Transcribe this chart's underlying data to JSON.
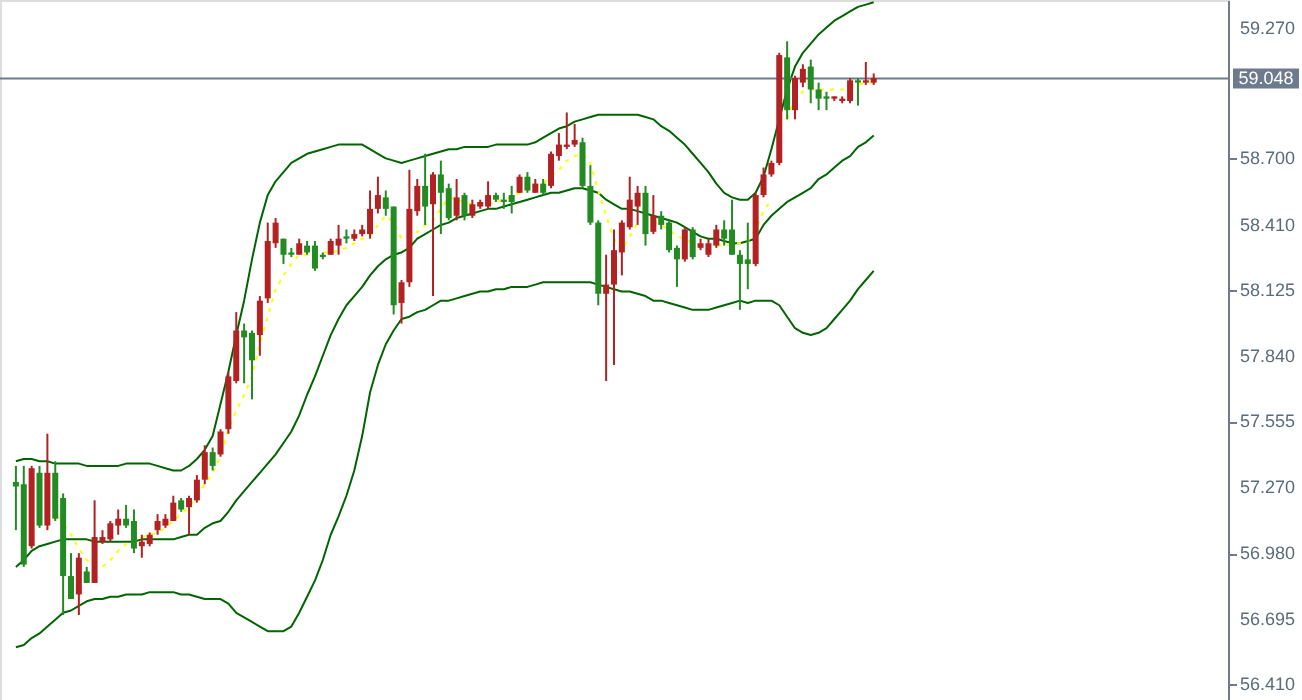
{
  "chart_data": {
    "type": "candlestick",
    "categories": [
      null,
      null,
      null,
      null,
      null,
      null,
      null,
      null,
      null,
      null,
      null,
      null,
      null,
      null,
      null,
      null,
      null,
      null,
      null,
      null,
      null,
      null,
      null,
      null,
      null,
      null,
      null,
      null,
      null,
      null,
      null,
      null,
      null,
      null,
      null,
      null,
      null,
      null,
      null,
      null,
      null,
      null,
      null,
      null,
      null,
      null,
      null,
      null,
      null,
      null,
      null,
      null,
      null,
      null,
      null,
      null,
      null,
      null,
      null,
      null,
      null,
      null,
      null,
      null,
      null,
      null,
      null,
      null,
      null,
      null,
      null,
      null,
      null,
      null,
      null,
      null,
      null,
      null,
      null,
      null,
      null,
      null,
      null,
      null,
      null,
      null,
      null,
      null,
      null,
      null,
      null,
      null,
      null,
      null,
      null,
      null,
      null,
      null,
      null,
      null,
      null,
      null,
      null,
      null,
      null,
      null,
      null,
      null,
      null,
      null
    ],
    "ohlc": [
      [
        57.29,
        57.36,
        57.08,
        57.27
      ],
      [
        57.28,
        57.36,
        56.92,
        56.93
      ],
      [
        57.01,
        57.36,
        57.0,
        57.35
      ],
      [
        57.33,
        57.36,
        57.09,
        57.1
      ],
      [
        57.1,
        57.5,
        57.08,
        57.33
      ],
      [
        57.33,
        57.38,
        57.12,
        57.13
      ],
      [
        57.22,
        57.24,
        56.71,
        56.88
      ],
      [
        56.88,
        56.98,
        56.78,
        56.78
      ],
      [
        56.8,
        56.98,
        56.71,
        56.96
      ],
      [
        56.9,
        56.92,
        56.85,
        56.85
      ],
      [
        56.85,
        57.21,
        56.85,
        57.05
      ],
      [
        57.03,
        57.08,
        57.02,
        57.05
      ],
      [
        57.04,
        57.12,
        57.03,
        57.11
      ],
      [
        57.1,
        57.17,
        57.06,
        57.13
      ],
      [
        57.13,
        57.19,
        57.09,
        57.1
      ],
      [
        57.12,
        57.17,
        56.98,
        57.0
      ],
      [
        57.01,
        57.06,
        56.96,
        57.03
      ],
      [
        57.02,
        57.07,
        57.01,
        57.06
      ],
      [
        57.08,
        57.15,
        57.06,
        57.12
      ],
      [
        57.1,
        57.15,
        57.09,
        57.13
      ],
      [
        57.12,
        57.23,
        57.12,
        57.2
      ],
      [
        57.21,
        57.22,
        57.16,
        57.17
      ],
      [
        57.18,
        57.23,
        57.06,
        57.22
      ],
      [
        57.21,
        57.32,
        57.2,
        57.3
      ],
      [
        57.3,
        57.45,
        57.28,
        57.42
      ],
      [
        57.42,
        57.44,
        57.34,
        57.36
      ],
      [
        57.41,
        57.52,
        57.4,
        57.51
      ],
      [
        57.52,
        57.77,
        57.5,
        57.75
      ],
      [
        57.73,
        58.03,
        57.72,
        57.95
      ],
      [
        57.95,
        57.98,
        57.72,
        57.92
      ],
      [
        57.94,
        57.95,
        57.65,
        57.82
      ],
      [
        57.93,
        58.1,
        57.84,
        58.08
      ],
      [
        58.09,
        58.42,
        58.07,
        58.34
      ],
      [
        58.33,
        58.44,
        58.31,
        58.42
      ],
      [
        58.35,
        58.35,
        58.24,
        58.28
      ],
      [
        58.29,
        58.31,
        58.27,
        58.28
      ],
      [
        58.28,
        58.35,
        58.28,
        58.33
      ],
      [
        58.32,
        58.34,
        58.28,
        58.29
      ],
      [
        58.32,
        58.34,
        58.21,
        58.22
      ],
      [
        58.28,
        58.29,
        58.26,
        58.27
      ],
      [
        58.28,
        58.35,
        58.28,
        58.34
      ],
      [
        58.32,
        58.41,
        58.28,
        58.35
      ],
      [
        58.36,
        58.39,
        58.33,
        58.35
      ],
      [
        58.35,
        58.39,
        58.34,
        58.37
      ],
      [
        58.37,
        58.41,
        58.36,
        58.39
      ],
      [
        58.37,
        58.56,
        58.35,
        58.48
      ],
      [
        58.48,
        58.62,
        58.46,
        58.54
      ],
      [
        58.53,
        58.56,
        58.45,
        58.48
      ],
      [
        58.49,
        58.49,
        58.02,
        58.06
      ],
      [
        58.07,
        58.17,
        57.98,
        58.16
      ],
      [
        58.16,
        58.65,
        58.14,
        58.48
      ],
      [
        58.47,
        58.61,
        58.45,
        58.58
      ],
      [
        58.58,
        58.72,
        58.41,
        58.49
      ],
      [
        58.5,
        58.64,
        58.1,
        58.63
      ],
      [
        58.63,
        58.69,
        58.37,
        58.55
      ],
      [
        58.57,
        58.59,
        58.43,
        58.44
      ],
      [
        58.45,
        58.61,
        58.43,
        58.53
      ],
      [
        58.54,
        58.55,
        58.43,
        58.45
      ],
      [
        58.45,
        58.52,
        58.44,
        58.5
      ],
      [
        58.49,
        58.52,
        58.48,
        58.51
      ],
      [
        58.49,
        58.6,
        58.48,
        58.54
      ],
      [
        58.54,
        58.55,
        58.51,
        58.52
      ],
      [
        58.52,
        58.55,
        58.48,
        58.51
      ],
      [
        58.54,
        58.58,
        58.46,
        58.51
      ],
      [
        58.55,
        58.63,
        58.55,
        58.62
      ],
      [
        58.62,
        58.64,
        58.55,
        58.56
      ],
      [
        58.55,
        58.61,
        58.55,
        58.59
      ],
      [
        58.59,
        58.61,
        58.54,
        58.55
      ],
      [
        58.58,
        58.73,
        58.57,
        58.72
      ],
      [
        58.71,
        58.81,
        58.69,
        58.76
      ],
      [
        58.75,
        58.9,
        58.74,
        58.76
      ],
      [
        58.76,
        58.85,
        58.75,
        58.78
      ],
      [
        58.77,
        58.79,
        58.57,
        58.58
      ],
      [
        58.58,
        58.67,
        58.41,
        58.42
      ],
      [
        58.42,
        58.43,
        58.06,
        58.11
      ],
      [
        58.11,
        58.28,
        57.73,
        58.15
      ],
      [
        58.15,
        58.39,
        57.8,
        58.3
      ],
      [
        58.29,
        58.43,
        58.19,
        58.42
      ],
      [
        58.4,
        58.62,
        58.39,
        58.52
      ],
      [
        58.49,
        58.58,
        58.41,
        58.55
      ],
      [
        58.55,
        58.58,
        58.32,
        58.37
      ],
      [
        58.38,
        58.54,
        58.37,
        58.45
      ],
      [
        58.45,
        58.47,
        58.39,
        58.41
      ],
      [
        58.42,
        58.43,
        58.29,
        58.3
      ],
      [
        58.31,
        58.32,
        58.14,
        58.26
      ],
      [
        58.26,
        58.4,
        58.25,
        58.39
      ],
      [
        58.39,
        58.4,
        58.26,
        58.27
      ],
      [
        58.31,
        58.35,
        58.3,
        58.33
      ],
      [
        58.28,
        58.35,
        58.27,
        58.33
      ],
      [
        58.32,
        58.41,
        58.31,
        58.39
      ],
      [
        58.39,
        58.43,
        58.32,
        58.35
      ],
      [
        58.39,
        58.52,
        58.28,
        58.28
      ],
      [
        58.28,
        58.3,
        58.04,
        58.24
      ],
      [
        58.26,
        58.42,
        58.13,
        58.24
      ],
      [
        58.24,
        58.55,
        58.23,
        58.54
      ],
      [
        58.54,
        58.66,
        58.53,
        58.63
      ],
      [
        58.63,
        58.69,
        58.62,
        58.68
      ],
      [
        58.68,
        59.16,
        58.67,
        59.15
      ],
      [
        59.14,
        59.21,
        58.87,
        58.91
      ],
      [
        58.91,
        59.06,
        58.87,
        59.05
      ],
      [
        59.03,
        59.11,
        59.01,
        59.09
      ],
      [
        59.1,
        59.13,
        58.94,
        59.0
      ],
      [
        59.0,
        59.03,
        58.91,
        58.96
      ],
      [
        58.97,
        58.99,
        58.91,
        58.96
      ],
      [
        58.97,
        58.97,
        58.95,
        58.96
      ],
      [
        58.96,
        58.97,
        58.94,
        58.95
      ],
      [
        58.95,
        59.05,
        58.94,
        59.04
      ],
      [
        59.04,
        59.05,
        58.93,
        59.03
      ],
      [
        59.03,
        59.12,
        59.02,
        59.04
      ],
      [
        59.03,
        59.07,
        59.02,
        59.05
      ]
    ],
    "colors": [
      "#228b22",
      "#228b22",
      "#b22222",
      "#228b22",
      "#b22222",
      "#228b22",
      "#228b22",
      "#228b22",
      "#b22222",
      "#228b22",
      "#b22222",
      "#b22222",
      "#b22222",
      "#b22222",
      "#228b22",
      "#228b22",
      "#b22222",
      "#b22222",
      "#b22222",
      "#b22222",
      "#b22222",
      "#228b22",
      "#b22222",
      "#b22222",
      "#b22222",
      "#228b22",
      "#b22222",
      "#b22222",
      "#b22222",
      "#228b22",
      "#228b22",
      "#b22222",
      "#b22222",
      "#b22222",
      "#228b22",
      "#228b22",
      "#b22222",
      "#228b22",
      "#228b22",
      "#228b22",
      "#b22222",
      "#b22222",
      "#228b22",
      "#b22222",
      "#b22222",
      "#b22222",
      "#b22222",
      "#228b22",
      "#228b22",
      "#b22222",
      "#b22222",
      "#b22222",
      "#228b22",
      "#b22222",
      "#228b22",
      "#228b22",
      "#b22222",
      "#228b22",
      "#b22222",
      "#b22222",
      "#b22222",
      "#228b22",
      "#228b22",
      "#228b22",
      "#b22222",
      "#228b22",
      "#b22222",
      "#228b22",
      "#b22222",
      "#b22222",
      "#b22222",
      "#b22222",
      "#228b22",
      "#228b22",
      "#228b22",
      "#b22222",
      "#b22222",
      "#b22222",
      "#b22222",
      "#b22222",
      "#228b22",
      "#b22222",
      "#228b22",
      "#228b22",
      "#228b22",
      "#b22222",
      "#228b22",
      "#b22222",
      "#b22222",
      "#b22222",
      "#228b22",
      "#228b22",
      "#228b22",
      "#228b22",
      "#b22222",
      "#b22222",
      "#b22222",
      "#b22222",
      "#228b22",
      "#b22222",
      "#b22222",
      "#228b22",
      "#228b22",
      "#228b22",
      "#b22222",
      "#b22222",
      "#b22222",
      "#228b22",
      "#b22222",
      "#b22222"
    ],
    "series": [
      {
        "type": "line",
        "color": "#006400",
        "line_style": "solid",
        "values": [
          57.38,
          57.39,
          57.39,
          57.38,
          57.38,
          57.37,
          57.37,
          57.37,
          57.37,
          57.36,
          57.36,
          57.36,
          57.36,
          57.36,
          57.37,
          57.37,
          57.37,
          57.37,
          57.36,
          57.35,
          57.34,
          57.34,
          57.36,
          57.39,
          57.43,
          57.49,
          57.63,
          57.77,
          57.93,
          58.08,
          58.26,
          58.42,
          58.54,
          58.6,
          58.64,
          58.68,
          58.7,
          58.72,
          58.73,
          58.74,
          58.75,
          58.76,
          58.76,
          58.76,
          58.76,
          58.74,
          58.72,
          58.7,
          58.69,
          58.68,
          58.69,
          58.7,
          58.71,
          58.72,
          58.73,
          58.74,
          58.74,
          58.75,
          58.75,
          58.75,
          58.75,
          58.76,
          58.76,
          58.76,
          58.76,
          58.76,
          58.77,
          58.79,
          58.81,
          58.83,
          58.84,
          58.86,
          58.87,
          58.88,
          58.89,
          58.89,
          58.89,
          58.89,
          58.89,
          58.89,
          58.88,
          58.87,
          58.84,
          58.82,
          58.79,
          58.76,
          58.72,
          58.68,
          58.64,
          58.59,
          58.55,
          58.53,
          58.52,
          58.52,
          58.55,
          58.62,
          58.74,
          58.87,
          59.0,
          59.1,
          59.16,
          59.2,
          59.24,
          59.27,
          59.3,
          59.32,
          59.34,
          59.36,
          59.37,
          59.38
        ]
      },
      {
        "type": "line",
        "color": "#006400",
        "line_style": "solid",
        "values": [
          56.92,
          56.95,
          56.99,
          57.01,
          57.02,
          57.03,
          57.04,
          57.04,
          57.04,
          57.04,
          57.03,
          57.03,
          57.03,
          57.03,
          57.03,
          57.03,
          57.04,
          57.04,
          57.04,
          57.04,
          57.04,
          57.05,
          57.06,
          57.06,
          57.09,
          57.11,
          57.12,
          57.16,
          57.21,
          57.25,
          57.29,
          57.33,
          57.37,
          57.41,
          57.46,
          57.51,
          57.58,
          57.67,
          57.75,
          57.84,
          57.93,
          58.0,
          58.06,
          58.1,
          58.14,
          58.19,
          58.23,
          58.26,
          58.28,
          58.29,
          58.31,
          58.35,
          58.37,
          58.39,
          58.41,
          58.42,
          58.44,
          58.45,
          58.46,
          58.47,
          58.48,
          58.48,
          58.49,
          58.5,
          58.51,
          58.52,
          58.53,
          58.54,
          58.55,
          58.55,
          58.56,
          58.57,
          58.57,
          58.56,
          58.55,
          58.52,
          58.5,
          58.48,
          58.48,
          58.47,
          58.46,
          58.45,
          58.44,
          58.43,
          58.42,
          58.4,
          58.38,
          58.36,
          58.35,
          58.35,
          58.34,
          58.33,
          58.33,
          58.34,
          58.35,
          58.41,
          58.45,
          58.48,
          58.51,
          58.53,
          58.55,
          58.57,
          58.61,
          58.63,
          58.66,
          58.69,
          58.71,
          58.75,
          58.77,
          58.8
        ]
      },
      {
        "type": "line",
        "color": "#006400",
        "line_style": "solid",
        "values": [
          56.57,
          56.58,
          56.61,
          56.63,
          56.66,
          56.69,
          56.72,
          56.73,
          56.75,
          56.77,
          56.78,
          56.78,
          56.79,
          56.79,
          56.8,
          56.8,
          56.8,
          56.81,
          56.81,
          56.81,
          56.81,
          56.8,
          56.8,
          56.79,
          56.78,
          56.78,
          56.78,
          56.76,
          56.72,
          56.7,
          56.68,
          56.66,
          56.64,
          56.64,
          56.64,
          56.66,
          56.72,
          56.79,
          56.86,
          56.95,
          57.06,
          57.14,
          57.23,
          57.34,
          57.49,
          57.68,
          57.8,
          57.89,
          57.95,
          58.0,
          58.01,
          58.03,
          58.04,
          58.06,
          58.08,
          58.08,
          58.09,
          58.1,
          58.11,
          58.12,
          58.12,
          58.13,
          58.13,
          58.14,
          58.14,
          58.14,
          58.15,
          58.16,
          58.16,
          58.16,
          58.16,
          58.16,
          58.16,
          58.16,
          58.15,
          58.14,
          58.13,
          58.12,
          58.12,
          58.11,
          58.1,
          58.08,
          58.08,
          58.07,
          58.06,
          58.05,
          58.04,
          58.04,
          58.04,
          58.05,
          58.06,
          58.07,
          58.08,
          58.07,
          58.08,
          58.08,
          58.08,
          58.06,
          58.01,
          57.96,
          57.94,
          57.93,
          57.94,
          57.96,
          58.0,
          58.04,
          58.08,
          58.13,
          58.17,
          58.21
        ]
      },
      {
        "type": "line",
        "color": "#ffff00",
        "line_style": "dotted",
        "values": [
          null,
          null,
          null,
          null,
          57.21,
          57.17,
          57.11,
          57.06,
          57.0,
          56.95,
          56.92,
          56.92,
          56.95,
          56.99,
          57.02,
          57.04,
          57.05,
          57.06,
          57.07,
          57.09,
          57.12,
          57.15,
          57.18,
          57.23,
          57.28,
          57.33,
          57.4,
          57.52,
          57.6,
          57.67,
          57.75,
          57.89,
          58.01,
          58.13,
          58.19,
          58.24,
          58.28,
          58.28,
          58.29,
          58.29,
          58.29,
          58.3,
          58.31,
          58.33,
          58.35,
          58.36,
          58.41,
          58.45,
          58.42,
          58.35,
          58.36,
          58.38,
          58.41,
          58.43,
          58.48,
          58.53,
          58.52,
          58.51,
          58.5,
          58.5,
          58.5,
          58.51,
          58.52,
          58.53,
          58.55,
          58.56,
          58.58,
          58.59,
          58.62,
          58.65,
          58.69,
          58.71,
          58.72,
          58.68,
          58.56,
          58.45,
          58.35,
          58.3,
          58.36,
          58.42,
          null,
          58.42,
          58.41,
          58.39,
          58.36,
          58.35,
          58.33,
          58.32,
          58.32,
          58.32,
          58.32,
          58.33,
          58.33,
          58.34,
          58.39,
          58.47,
          58.52,
          null,
          58.87,
          58.96,
          58.99,
          59.0,
          59.0,
          59.0,
          59.0,
          59.0,
          59.01,
          59.02,
          59.03,
          59.03
        ]
      }
    ],
    "ylim": [
      56.34,
      59.39
    ],
    "yticks": [
      {
        "value": 59.27,
        "label": "59.270"
      },
      {
        "value": 58.7,
        "label": "58.700"
      },
      {
        "value": 58.41,
        "label": "58.410"
      },
      {
        "value": 58.125,
        "label": "58.125"
      },
      {
        "value": 57.84,
        "label": "57.840"
      },
      {
        "value": 57.555,
        "label": "57.555"
      },
      {
        "value": 57.27,
        "label": "57.270"
      },
      {
        "value": 56.98,
        "label": "56.980"
      },
      {
        "value": 56.695,
        "label": "56.695"
      },
      {
        "value": 56.41,
        "label": "56.410"
      }
    ],
    "ref_lines": [
      {
        "axis": "y",
        "value": 59.048,
        "label": "59.048",
        "color": "#6d7b8d"
      }
    ],
    "tick_labels": "y"
  }
}
